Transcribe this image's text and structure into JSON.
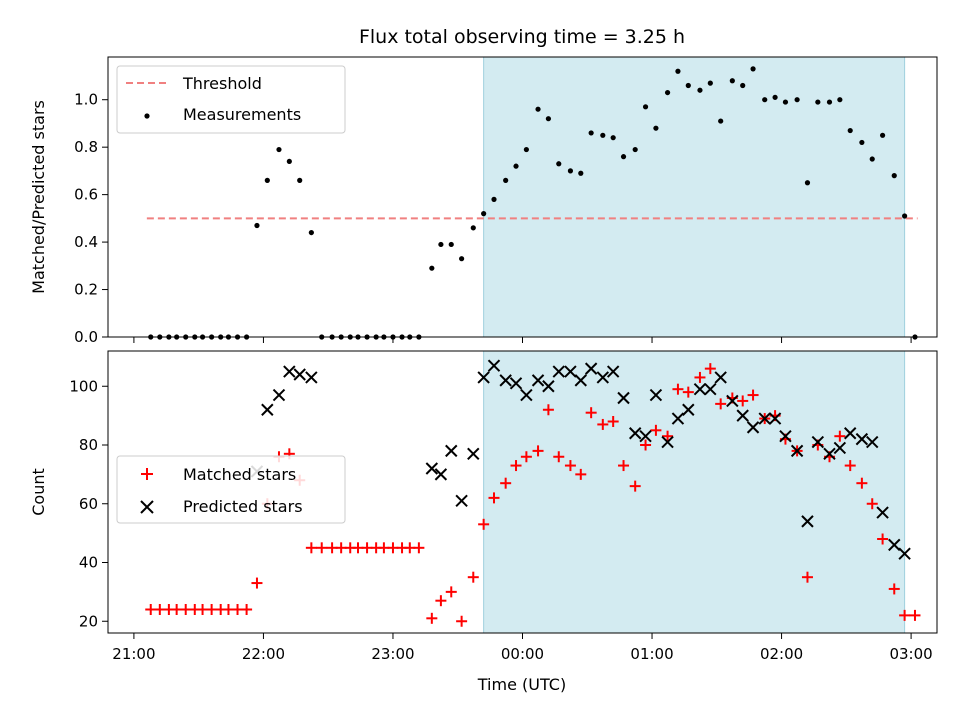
{
  "title": "Flux total observing time = 3.25 h",
  "x_axis": {
    "label": "Time (UTC)",
    "range_hours": [
      20.8,
      27.2
    ],
    "ticks": [
      {
        "h": 21,
        "label": "21:00"
      },
      {
        "h": 22,
        "label": "22:00"
      },
      {
        "h": 23,
        "label": "23:00"
      },
      {
        "h": 24,
        "label": "00:00"
      },
      {
        "h": 25,
        "label": "01:00"
      },
      {
        "h": 26,
        "label": "02:00"
      },
      {
        "h": 27,
        "label": "03:00"
      }
    ]
  },
  "shaded_span_hours": [
    23.7,
    26.95
  ],
  "colors": {
    "shade": "#d3ebf1",
    "threshold": "#f08080",
    "matched": "#ff0000",
    "predicted": "#000000",
    "measure": "#000000"
  },
  "chart_data": [
    {
      "type": "scatter",
      "ylabel": "Matched/Predicted stars",
      "ylim": [
        0,
        1.18
      ],
      "yticks": [
        0.0,
        0.2,
        0.4,
        0.6,
        0.8,
        1.0
      ],
      "yticklabels": [
        "0.0",
        "0.2",
        "0.4",
        "0.6",
        "0.8",
        "1.0"
      ],
      "legend": "upper-left",
      "threshold": {
        "name": "Threshold",
        "y": 0.5,
        "x": [
          21.1,
          27.05
        ]
      },
      "series": [
        {
          "name": "Measurements",
          "points": [
            [
              21.13,
              0
            ],
            [
              21.2,
              0
            ],
            [
              21.27,
              0
            ],
            [
              21.33,
              0
            ],
            [
              21.4,
              0
            ],
            [
              21.47,
              0
            ],
            [
              21.53,
              0
            ],
            [
              21.6,
              0
            ],
            [
              21.67,
              0
            ],
            [
              21.73,
              0
            ],
            [
              21.8,
              0
            ],
            [
              21.87,
              0
            ],
            [
              21.95,
              0.47
            ],
            [
              22.03,
              0.66
            ],
            [
              22.12,
              0.79
            ],
            [
              22.2,
              0.74
            ],
            [
              22.28,
              0.66
            ],
            [
              22.37,
              0.44
            ],
            [
              22.45,
              0
            ],
            [
              22.53,
              0
            ],
            [
              22.6,
              0
            ],
            [
              22.67,
              0
            ],
            [
              22.73,
              0
            ],
            [
              22.8,
              0
            ],
            [
              22.87,
              0
            ],
            [
              22.93,
              0
            ],
            [
              23.0,
              0
            ],
            [
              23.07,
              0
            ],
            [
              23.13,
              0
            ],
            [
              23.2,
              0
            ],
            [
              23.3,
              0.29
            ],
            [
              23.37,
              0.39
            ],
            [
              23.45,
              0.39
            ],
            [
              23.53,
              0.33
            ],
            [
              23.62,
              0.46
            ],
            [
              23.7,
              0.52
            ],
            [
              23.78,
              0.58
            ],
            [
              23.87,
              0.66
            ],
            [
              23.95,
              0.72
            ],
            [
              24.03,
              0.79
            ],
            [
              24.12,
              0.96
            ],
            [
              24.2,
              0.92
            ],
            [
              24.28,
              0.73
            ],
            [
              24.37,
              0.7
            ],
            [
              24.45,
              0.69
            ],
            [
              24.53,
              0.86
            ],
            [
              24.62,
              0.85
            ],
            [
              24.7,
              0.84
            ],
            [
              24.78,
              0.76
            ],
            [
              24.87,
              0.79
            ],
            [
              24.95,
              0.97
            ],
            [
              25.03,
              0.88
            ],
            [
              25.12,
              1.03
            ],
            [
              25.2,
              1.12
            ],
            [
              25.28,
              1.06
            ],
            [
              25.37,
              1.04
            ],
            [
              25.45,
              1.07
            ],
            [
              25.53,
              0.91
            ],
            [
              25.62,
              1.08
            ],
            [
              25.7,
              1.06
            ],
            [
              25.78,
              1.13
            ],
            [
              25.87,
              1.0
            ],
            [
              25.95,
              1.01
            ],
            [
              26.03,
              0.99
            ],
            [
              26.12,
              1.0
            ],
            [
              26.2,
              0.65
            ],
            [
              26.28,
              0.99
            ],
            [
              26.37,
              0.99
            ],
            [
              26.45,
              1.0
            ],
            [
              26.53,
              0.87
            ],
            [
              26.62,
              0.82
            ],
            [
              26.7,
              0.75
            ],
            [
              26.78,
              0.85
            ],
            [
              26.87,
              0.68
            ],
            [
              26.95,
              0.51
            ],
            [
              27.03,
              0
            ]
          ]
        }
      ]
    },
    {
      "type": "scatter",
      "ylabel": "Count",
      "xlabel": "Time (UTC)",
      "ylim": [
        16,
        112
      ],
      "yticks": [
        20,
        40,
        60,
        80,
        100
      ],
      "yticklabels": [
        "20",
        "40",
        "60",
        "80",
        "100"
      ],
      "legend": "center-left",
      "series": [
        {
          "name": "Matched stars",
          "points": [
            [
              21.13,
              24
            ],
            [
              21.2,
              24
            ],
            [
              21.27,
              24
            ],
            [
              21.33,
              24
            ],
            [
              21.4,
              24
            ],
            [
              21.47,
              24
            ],
            [
              21.53,
              24
            ],
            [
              21.6,
              24
            ],
            [
              21.67,
              24
            ],
            [
              21.73,
              24
            ],
            [
              21.8,
              24
            ],
            [
              21.87,
              24
            ],
            [
              21.95,
              33
            ],
            [
              22.03,
              60
            ],
            [
              22.12,
              76
            ],
            [
              22.2,
              77
            ],
            [
              22.28,
              68
            ],
            [
              22.37,
              45
            ],
            [
              22.45,
              45
            ],
            [
              22.53,
              45
            ],
            [
              22.6,
              45
            ],
            [
              22.67,
              45
            ],
            [
              22.73,
              45
            ],
            [
              22.8,
              45
            ],
            [
              22.87,
              45
            ],
            [
              22.93,
              45
            ],
            [
              23.0,
              45
            ],
            [
              23.07,
              45
            ],
            [
              23.13,
              45
            ],
            [
              23.2,
              45
            ],
            [
              23.3,
              21
            ],
            [
              23.37,
              27
            ],
            [
              23.45,
              30
            ],
            [
              23.53,
              20
            ],
            [
              23.62,
              35
            ],
            [
              23.7,
              53
            ],
            [
              23.78,
              62
            ],
            [
              23.87,
              67
            ],
            [
              23.95,
              73
            ],
            [
              24.03,
              76
            ],
            [
              24.12,
              78
            ],
            [
              24.2,
              92
            ],
            [
              24.28,
              76
            ],
            [
              24.37,
              73
            ],
            [
              24.45,
              70
            ],
            [
              24.53,
              91
            ],
            [
              24.62,
              87
            ],
            [
              24.7,
              88
            ],
            [
              24.78,
              73
            ],
            [
              24.87,
              66
            ],
            [
              24.95,
              80
            ],
            [
              25.03,
              85
            ],
            [
              25.12,
              83
            ],
            [
              25.2,
              99
            ],
            [
              25.28,
              98
            ],
            [
              25.37,
              103
            ],
            [
              25.45,
              106
            ],
            [
              25.53,
              94
            ],
            [
              25.62,
              96
            ],
            [
              25.7,
              95
            ],
            [
              25.78,
              97
            ],
            [
              25.87,
              89
            ],
            [
              25.95,
              90
            ],
            [
              26.03,
              82
            ],
            [
              26.12,
              78
            ],
            [
              26.2,
              35
            ],
            [
              26.28,
              80
            ],
            [
              26.37,
              76
            ],
            [
              26.45,
              83
            ],
            [
              26.53,
              73
            ],
            [
              26.62,
              67
            ],
            [
              26.7,
              60
            ],
            [
              26.78,
              48
            ],
            [
              26.87,
              31
            ],
            [
              26.95,
              22
            ],
            [
              27.03,
              22
            ]
          ]
        },
        {
          "name": "Predicted stars",
          "points": [
            [
              21.95,
              71
            ],
            [
              22.03,
              92
            ],
            [
              22.12,
              97
            ],
            [
              22.2,
              105
            ],
            [
              22.28,
              104
            ],
            [
              22.37,
              103
            ],
            [
              23.3,
              72
            ],
            [
              23.37,
              70
            ],
            [
              23.45,
              78
            ],
            [
              23.53,
              61
            ],
            [
              23.62,
              77
            ],
            [
              23.7,
              103
            ],
            [
              23.78,
              107
            ],
            [
              23.87,
              102
            ],
            [
              23.95,
              101
            ],
            [
              24.03,
              97
            ],
            [
              24.12,
              102
            ],
            [
              24.2,
              100
            ],
            [
              24.28,
              105
            ],
            [
              24.37,
              105
            ],
            [
              24.45,
              102
            ],
            [
              24.53,
              106
            ],
            [
              24.62,
              103
            ],
            [
              24.7,
              105
            ],
            [
              24.78,
              96
            ],
            [
              24.87,
              84
            ],
            [
              24.95,
              83
            ],
            [
              25.03,
              97
            ],
            [
              25.12,
              81
            ],
            [
              25.2,
              89
            ],
            [
              25.28,
              92
            ],
            [
              25.37,
              99
            ],
            [
              25.45,
              99
            ],
            [
              25.53,
              103
            ],
            [
              25.62,
              95
            ],
            [
              25.7,
              90
            ],
            [
              25.78,
              86
            ],
            [
              25.87,
              89
            ],
            [
              25.95,
              89
            ],
            [
              26.03,
              83
            ],
            [
              26.12,
              78
            ],
            [
              26.2,
              54
            ],
            [
              26.28,
              81
            ],
            [
              26.37,
              77
            ],
            [
              26.45,
              79
            ],
            [
              26.53,
              84
            ],
            [
              26.62,
              82
            ],
            [
              26.7,
              81
            ],
            [
              26.78,
              57
            ],
            [
              26.87,
              46
            ],
            [
              26.95,
              43
            ]
          ]
        }
      ]
    }
  ]
}
